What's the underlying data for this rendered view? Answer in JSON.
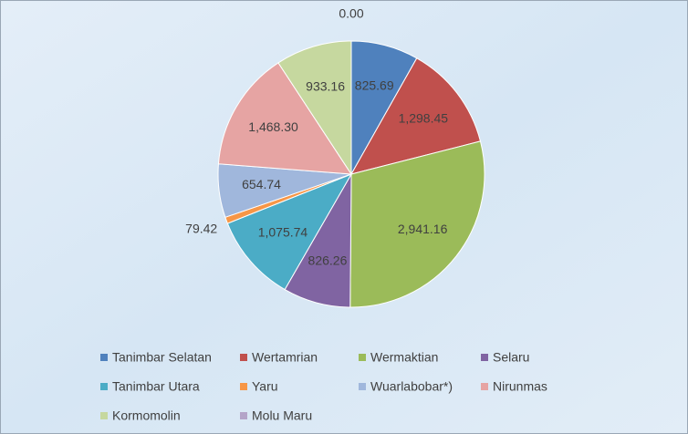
{
  "chart_data": {
    "type": "pie",
    "categories": [
      "Tanimbar Selatan",
      "Wertamrian",
      "Wermaktian",
      "Selaru",
      "Tanimbar Utara",
      "Yaru",
      "Wuarlabobar*)",
      "Nirunmas",
      "Kormomolin",
      "Molu Maru"
    ],
    "values": [
      825.69,
      1298.45,
      2941.16,
      826.26,
      1075.74,
      79.42,
      654.74,
      1468.3,
      933.16,
      0.0
    ],
    "value_labels": [
      "825.69",
      "1,298.45",
      "2,941.16",
      "826.26",
      "1,075.74",
      "79.42",
      "654.74",
      "1,468.30",
      "933.16",
      "0.00"
    ],
    "colors": [
      "#4f81bd",
      "#c0504d",
      "#9bbb59",
      "#8064a2",
      "#4bacc6",
      "#f79646",
      "#a0b7dc",
      "#e6a4a3",
      "#c6d89f",
      "#b4a4c8"
    ]
  }
}
